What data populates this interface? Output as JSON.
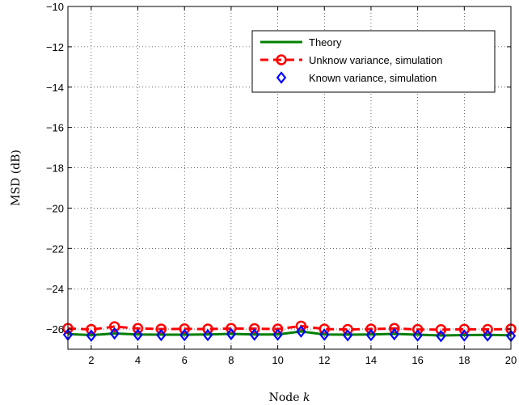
{
  "chart_data": {
    "type": "line",
    "xlabel": "Node",
    "xlabel_var": "k",
    "ylabel": "MSD (dB)",
    "xlim": [
      1,
      20
    ],
    "ylim": [
      -27,
      -10
    ],
    "xticks": [
      2,
      4,
      6,
      8,
      10,
      12,
      14,
      16,
      18,
      20
    ],
    "yticks": [
      -26,
      -24,
      -22,
      -20,
      -18,
      -16,
      -14,
      -12,
      -10
    ],
    "ytick_labels": [
      "−26",
      "−24",
      "−22",
      "−20",
      "−18",
      "−16",
      "−14",
      "−12",
      "−10"
    ],
    "grid": true,
    "legend_position": "top-right",
    "x": [
      1,
      2,
      3,
      4,
      5,
      6,
      7,
      8,
      9,
      10,
      11,
      12,
      13,
      14,
      15,
      16,
      17,
      18,
      19,
      20
    ],
    "series": [
      {
        "name": "Theory",
        "color": "#008000",
        "style": "solid",
        "marker": "none",
        "values": [
          -26.25,
          -26.3,
          -26.22,
          -26.27,
          -26.28,
          -26.28,
          -26.27,
          -26.24,
          -26.27,
          -26.27,
          -26.12,
          -26.27,
          -26.28,
          -26.27,
          -26.24,
          -26.28,
          -26.32,
          -26.3,
          -26.29,
          -26.31
        ]
      },
      {
        "name": "Unknow variance, simulation",
        "color": "#ff0000",
        "style": "dashed",
        "marker": "circle",
        "values": [
          -25.97,
          -26.02,
          -25.88,
          -25.97,
          -26.0,
          -25.99,
          -26.0,
          -25.97,
          -25.98,
          -26.0,
          -25.85,
          -26.0,
          -26.02,
          -26.0,
          -25.97,
          -26.02,
          -26.03,
          -26.01,
          -26.02,
          -26.0
        ]
      },
      {
        "name": "Known variance, simulation",
        "color": "#0000ff",
        "style": "none",
        "marker": "diamond",
        "values": [
          -26.28,
          -26.33,
          -26.22,
          -26.29,
          -26.3,
          -26.3,
          -26.3,
          -26.25,
          -26.28,
          -26.28,
          -26.12,
          -26.28,
          -26.31,
          -26.3,
          -26.26,
          -26.32,
          -26.35,
          -26.32,
          -26.32,
          -26.34
        ]
      }
    ]
  }
}
